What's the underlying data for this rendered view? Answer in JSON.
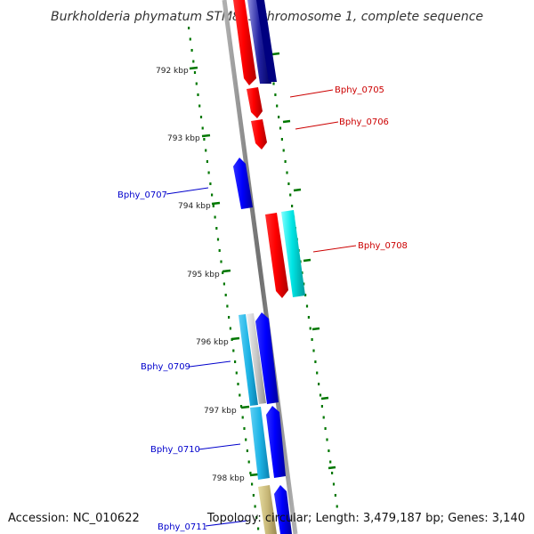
{
  "title": "Burkholderia phymatum STM815 chromosome 1, complete sequence",
  "footer": {
    "accession": "Accession: NC_010622",
    "summary": "Topology: circular; Length: 3,479,187 bp; Genes: 3,140"
  },
  "colors": {
    "forward_red": "#ff0000",
    "reverse_blue": "#0000ff",
    "dark_blue": "#000080",
    "cyan": "#00e5e5",
    "light_blue": "#1eb4e6",
    "olive": "#c8b878",
    "grey": "#c0c0c0",
    "tick_green": "#007700",
    "backbone": "#8a8a8a"
  },
  "ticks": [
    {
      "label": "792 kbp"
    },
    {
      "label": "793 kbp"
    },
    {
      "label": "794 kbp"
    },
    {
      "label": "795 kbp"
    },
    {
      "label": "796 kbp"
    },
    {
      "label": "797 kbp"
    },
    {
      "label": "798 kbp"
    }
  ],
  "genes": [
    {
      "name": "Bphy_0705",
      "color": "#cc0000"
    },
    {
      "name": "Bphy_0706",
      "color": "#cc0000"
    },
    {
      "name": "Bphy_0707",
      "color": "#0000cc"
    },
    {
      "name": "Bphy_0708",
      "color": "#cc0000"
    },
    {
      "name": "Bphy_0709",
      "color": "#0000cc"
    },
    {
      "name": "Bphy_0710",
      "color": "#0000cc"
    },
    {
      "name": "Bphy_0711",
      "color": "#0000cc"
    }
  ]
}
